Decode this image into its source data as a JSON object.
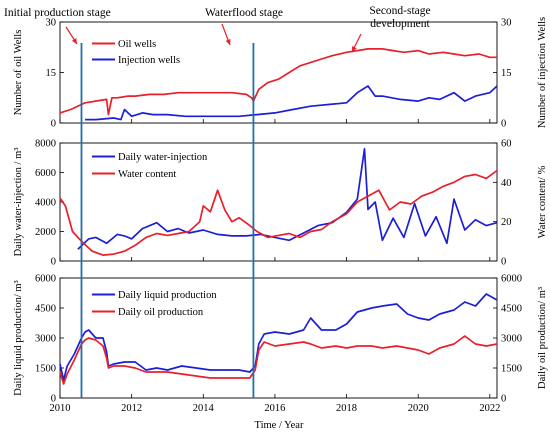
{
  "chart_data": [
    {
      "type": "line",
      "panel": "top",
      "ylabel": "Number of oil Wells",
      "y2label": "Number of injection Wells",
      "ylim": [
        0,
        30
      ],
      "yticks": [
        0,
        15,
        30
      ],
      "y2lim": [
        0,
        30
      ],
      "y2ticks": [
        0,
        15,
        30
      ],
      "xlim": [
        2010,
        2022.2
      ],
      "legend_position": "upper-left",
      "series": [
        {
          "name": "Oil wells",
          "color": "#e8202a",
          "axis": "left",
          "x": [
            2010,
            2010.3,
            2010.6,
            2010.7,
            2011.0,
            2011.3,
            2011.35,
            2011.45,
            2011.6,
            2011.9,
            2012.1,
            2012.5,
            2012.9,
            2013.3,
            2013.8,
            2014.3,
            2014.8,
            2015.2,
            2015.35,
            2015.4,
            2015.55,
            2015.8,
            2016.1,
            2016.4,
            2016.7,
            2017.0,
            2017.3,
            2017.6,
            2018.0,
            2018.3,
            2018.6,
            2019.0,
            2019.3,
            2019.6,
            2020.0,
            2020.3,
            2020.7,
            2021.0,
            2021.3,
            2021.7,
            2022.0,
            2022.2
          ],
          "y": [
            3,
            4,
            5.5,
            6,
            6.5,
            7,
            2.5,
            7.5,
            7.5,
            8,
            8,
            8.5,
            8.5,
            9,
            9,
            9,
            9,
            8.5,
            7.5,
            6.5,
            10,
            12,
            13,
            15,
            17,
            18,
            19,
            20,
            21,
            21.5,
            22,
            22,
            21.5,
            21,
            21.5,
            20.5,
            21,
            20.5,
            20,
            20.5,
            19.5,
            19.5
          ]
        },
        {
          "name": "Injection wells",
          "color": "#1c1fd6",
          "axis": "right",
          "x": [
            2010.7,
            2011.0,
            2011.5,
            2011.7,
            2011.8,
            2012.0,
            2012.3,
            2012.6,
            2013.0,
            2013.5,
            2014.0,
            2014.5,
            2015.0,
            2015.5,
            2016.0,
            2016.5,
            2017.0,
            2017.5,
            2018.0,
            2018.3,
            2018.6,
            2018.8,
            2019.0,
            2019.5,
            2020.0,
            2020.3,
            2020.6,
            2021.0,
            2021.3,
            2021.6,
            2022.0,
            2022.2
          ],
          "y": [
            1,
            1,
            1.5,
            1,
            4,
            2,
            3,
            2.5,
            2.5,
            2,
            2,
            2,
            2,
            2.5,
            3,
            4,
            5,
            5.5,
            6,
            9,
            11,
            8,
            8,
            7,
            6.5,
            7.5,
            7,
            9,
            6.5,
            8,
            9,
            11
          ]
        }
      ]
    },
    {
      "type": "line",
      "panel": "middle",
      "ylabel": "Daily water-injection / m³",
      "y2label": "Water content/ %",
      "ylim": [
        0,
        8000
      ],
      "yticks": [
        0,
        2000,
        4000,
        6000,
        8000
      ],
      "y2lim": [
        0,
        60
      ],
      "y2ticks": [
        0,
        20,
        40,
        60
      ],
      "xlim": [
        2010,
        2022.2
      ],
      "legend_position": "upper-left",
      "series": [
        {
          "name": "Daily water-injection",
          "color": "#1c1fd6",
          "axis": "left",
          "x": [
            2010.5,
            2010.8,
            2011.0,
            2011.3,
            2011.6,
            2011.8,
            2012.0,
            2012.3,
            2012.7,
            2013.0,
            2013.3,
            2013.6,
            2014.0,
            2014.4,
            2014.8,
            2015.2,
            2015.6,
            2016.0,
            2016.4,
            2016.8,
            2017.2,
            2017.6,
            2018.0,
            2018.3,
            2018.5,
            2018.6,
            2018.8,
            2019.0,
            2019.3,
            2019.6,
            2019.9,
            2020.2,
            2020.5,
            2020.8,
            2021.0,
            2021.3,
            2021.6,
            2021.9,
            2022.2
          ],
          "y": [
            800,
            1500,
            1600,
            1200,
            1800,
            1700,
            1500,
            2200,
            2600,
            2000,
            2200,
            1900,
            2100,
            1800,
            1700,
            1700,
            1800,
            1600,
            1400,
            1900,
            2400,
            2600,
            3300,
            4200,
            7600,
            3500,
            4000,
            1400,
            2900,
            1600,
            3900,
            1700,
            3000,
            1200,
            4200,
            2100,
            2800,
            2400,
            2600
          ]
        },
        {
          "name": "Water content",
          "color": "#e8202a",
          "axis": "right",
          "x": [
            2010,
            2010.15,
            2010.35,
            2010.6,
            2010.9,
            2011.2,
            2011.5,
            2011.8,
            2012.1,
            2012.4,
            2012.7,
            2013.0,
            2013.3,
            2013.6,
            2013.9,
            2014.0,
            2014.2,
            2014.4,
            2014.6,
            2014.8,
            2015.0,
            2015.3,
            2015.5,
            2015.8,
            2016.1,
            2016.4,
            2016.7,
            2017.0,
            2017.3,
            2017.6,
            2018.0,
            2018.3,
            2018.6,
            2018.9,
            2019.2,
            2019.5,
            2019.8,
            2020.1,
            2020.4,
            2020.7,
            2021.0,
            2021.3,
            2021.6,
            2021.9,
            2022.2
          ],
          "y": [
            32,
            28,
            15,
            10,
            5,
            3,
            3.5,
            5,
            8,
            12,
            14,
            13,
            14,
            15,
            20,
            28,
            25,
            36,
            26,
            20,
            22,
            18,
            15,
            12,
            13,
            14,
            12,
            15,
            16,
            20,
            24,
            30,
            33,
            36,
            26,
            30,
            29,
            33,
            35,
            38,
            40,
            43,
            44,
            42,
            46
          ]
        }
      ]
    },
    {
      "type": "line",
      "panel": "bottom",
      "ylabel": "Daily liquid production/ m³",
      "y2label": "Daily oil production/ m³",
      "xlabel": "Time / Year",
      "ylim": [
        0,
        6000
      ],
      "yticks": [
        0,
        1500,
        3000,
        4500,
        6000
      ],
      "y2lim": [
        0,
        6000
      ],
      "y2ticks": [
        0,
        1500,
        3000,
        4500,
        6000
      ],
      "xlim": [
        2010,
        2022.2
      ],
      "xticks": [
        2010,
        2012,
        2014,
        2016,
        2018,
        2020,
        2022
      ],
      "legend_position": "upper-left",
      "series": [
        {
          "name": "Daily liquid production",
          "color": "#1c1fd6",
          "axis": "left",
          "x": [
            2010,
            2010.1,
            2010.2,
            2010.4,
            2010.6,
            2010.7,
            2010.8,
            2011.0,
            2011.2,
            2011.3,
            2011.35,
            2011.5,
            2011.8,
            2012.1,
            2012.4,
            2012.7,
            2013.0,
            2013.4,
            2013.8,
            2014.2,
            2014.6,
            2015.0,
            2015.3,
            2015.45,
            2015.55,
            2015.7,
            2016.0,
            2016.4,
            2016.8,
            2017.0,
            2017.3,
            2017.7,
            2018.0,
            2018.3,
            2018.7,
            2019.0,
            2019.4,
            2019.7,
            2020.0,
            2020.3,
            2020.6,
            2021.0,
            2021.3,
            2021.6,
            2021.9,
            2022.2
          ],
          "y": [
            1700,
            900,
            1600,
            2200,
            3000,
            3300,
            3400,
            3000,
            3000,
            2300,
            1600,
            1700,
            1800,
            1800,
            1400,
            1500,
            1400,
            1600,
            1500,
            1400,
            1400,
            1400,
            1300,
            1600,
            2700,
            3200,
            3300,
            3200,
            3400,
            4000,
            3400,
            3400,
            3700,
            4300,
            4500,
            4600,
            4700,
            4200,
            4000,
            3900,
            4200,
            4400,
            4800,
            4600,
            5200,
            4900
          ]
        },
        {
          "name": "Daily oil production",
          "color": "#e8202a",
          "axis": "right",
          "x": [
            2010,
            2010.1,
            2010.2,
            2010.4,
            2010.6,
            2010.7,
            2010.8,
            2011.0,
            2011.2,
            2011.3,
            2011.35,
            2011.5,
            2011.8,
            2012.1,
            2012.4,
            2012.7,
            2013.0,
            2013.4,
            2013.8,
            2014.2,
            2014.6,
            2015.0,
            2015.3,
            2015.45,
            2015.55,
            2015.7,
            2016.0,
            2016.4,
            2016.8,
            2017.0,
            2017.3,
            2017.7,
            2018.0,
            2018.3,
            2018.7,
            2019.0,
            2019.4,
            2019.7,
            2020.0,
            2020.3,
            2020.6,
            2021.0,
            2021.3,
            2021.6,
            2021.9,
            2022.2
          ],
          "y": [
            1300,
            700,
            1200,
            1900,
            2700,
            2900,
            3000,
            2900,
            2600,
            2000,
            1500,
            1600,
            1600,
            1500,
            1300,
            1300,
            1300,
            1200,
            1100,
            1000,
            1000,
            1000,
            1000,
            1400,
            2400,
            2800,
            2600,
            2700,
            2800,
            2700,
            2500,
            2600,
            2500,
            2600,
            2600,
            2500,
            2600,
            2500,
            2400,
            2200,
            2500,
            2700,
            3100,
            2700,
            2600,
            2700
          ]
        }
      ]
    }
  ],
  "annotations": {
    "stage1": "Initial production stage",
    "stage2": "Waterflood stage",
    "stage3_line1": "Second-stage",
    "stage3_line2": "development",
    "stage1_line_year": 2010.6,
    "stage2_line_year": 2015.4,
    "line_color": "#1f6fb0",
    "arrow_color": "#e8202a"
  }
}
